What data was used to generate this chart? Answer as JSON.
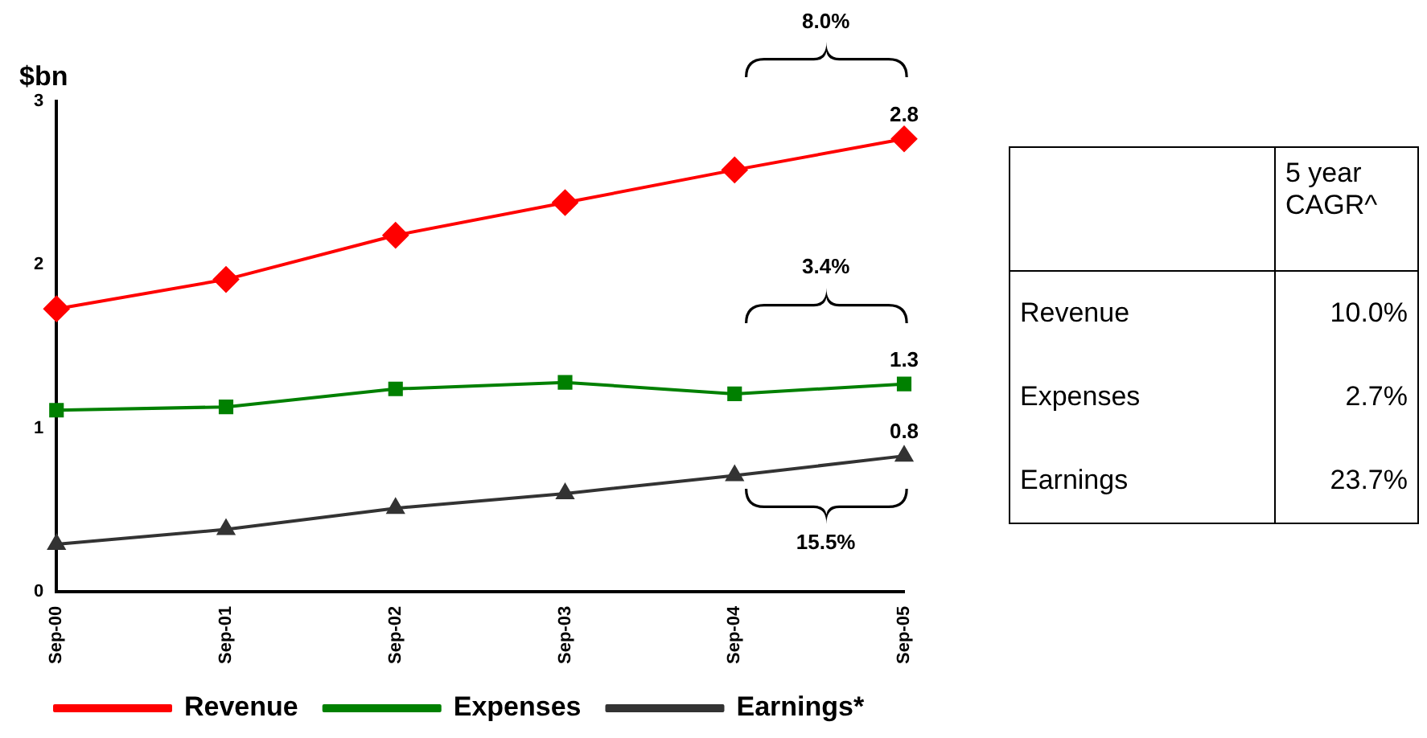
{
  "chart_data": [
    {
      "type": "line",
      "ylabel": "$bn",
      "categories": [
        "Sep-00",
        "Sep-01",
        "Sep-02",
        "Sep-03",
        "Sep-04",
        "Sep-05"
      ],
      "series": [
        {
          "name": "Revenue",
          "color": "#ff0000",
          "marker": "diamond",
          "values": [
            1.73,
            1.91,
            2.18,
            2.38,
            2.58,
            2.77
          ],
          "value_labels": [
            null,
            null,
            null,
            null,
            null,
            "2.8"
          ]
        },
        {
          "name": "Expenses",
          "color": "#008000",
          "marker": "square",
          "values": [
            1.11,
            1.13,
            1.24,
            1.28,
            1.21,
            1.27
          ],
          "value_labels": [
            null,
            null,
            null,
            null,
            null,
            "1.3"
          ]
        },
        {
          "name": "Earnings*",
          "color": "#333333",
          "marker": "triangle",
          "values": [
            0.29,
            0.38,
            0.51,
            0.6,
            0.71,
            0.83
          ],
          "value_labels": [
            null,
            null,
            null,
            null,
            null,
            "0.8"
          ]
        }
      ],
      "ylim": [
        0,
        3
      ],
      "yticks": [
        0,
        1,
        2,
        3
      ],
      "grid": false,
      "legend": "bottom",
      "annotations": [
        "8.0%",
        "3.4%",
        "15.5%"
      ]
    },
    {
      "type": "other",
      "title": "5 year CAGR^",
      "categories": [
        "Revenue",
        "Expenses",
        "Earnings"
      ],
      "values": [
        10.0,
        2.7,
        23.7
      ],
      "value_labels": [
        "10.0%",
        "2.7%",
        "23.7%"
      ]
    }
  ]
}
